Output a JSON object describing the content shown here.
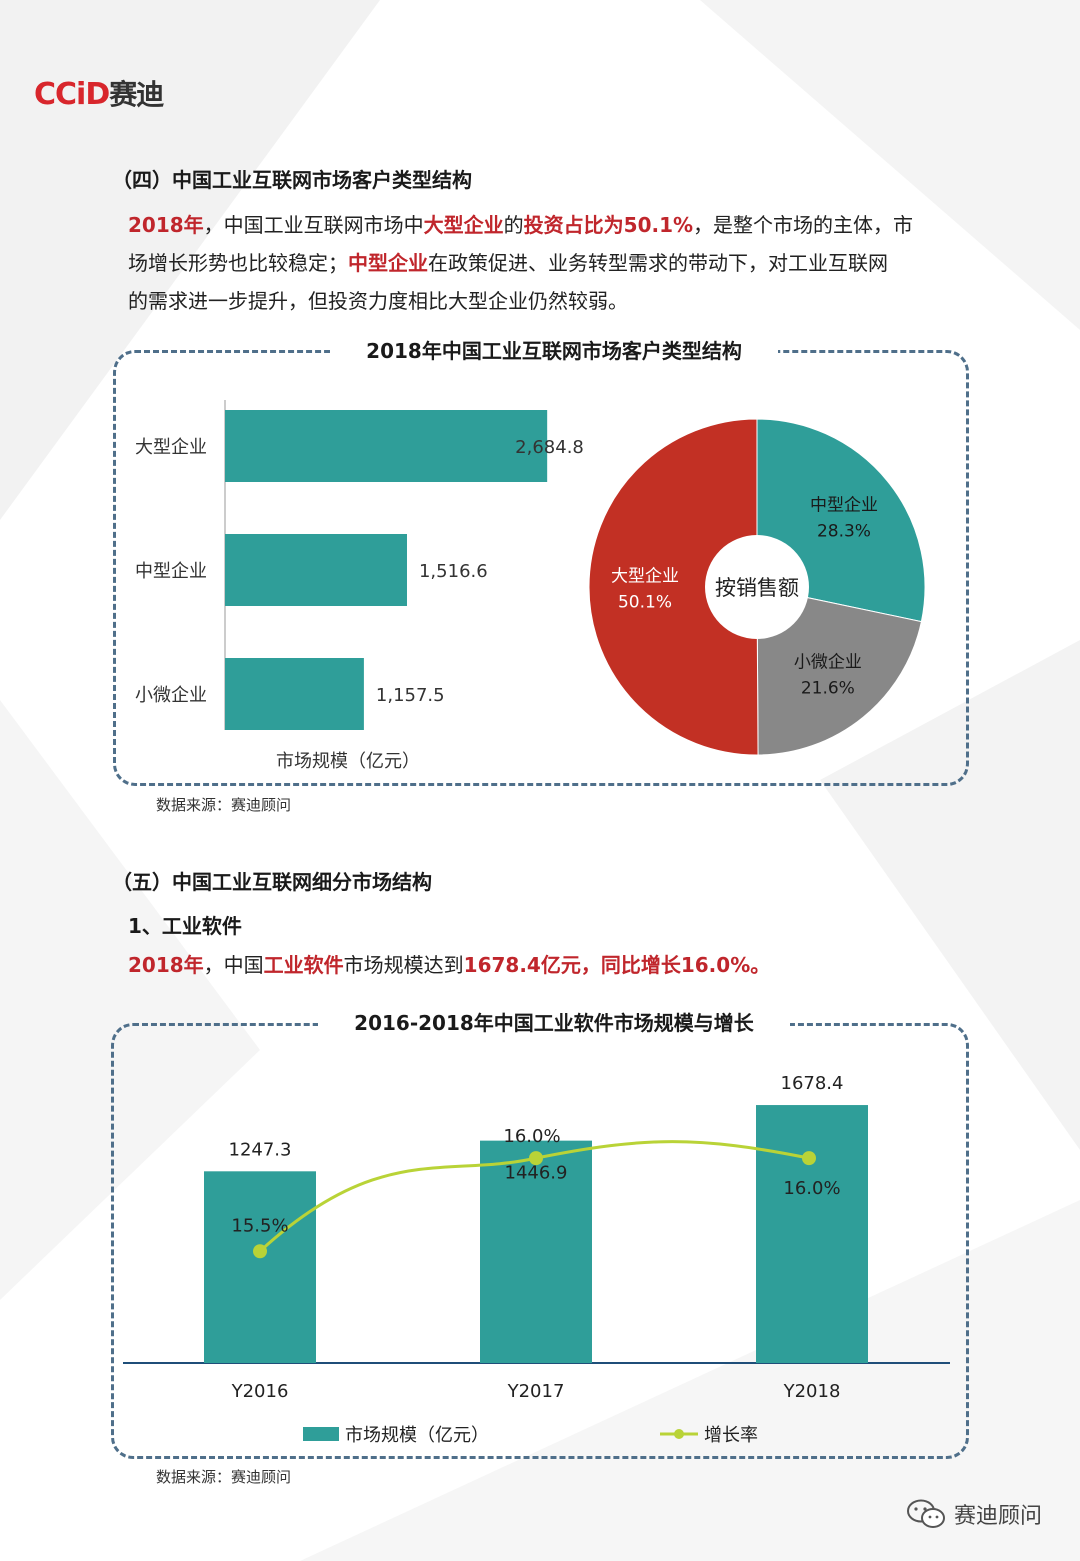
{
  "logo": {
    "latin": "CCiD",
    "chinese": "赛迪"
  },
  "section4": {
    "heading": "（四）中国工业互联网市场客户类型结构",
    "para": {
      "l1_year": "2018年",
      "l1_a": "，中国工业互联网市场中",
      "l1_b": "大型企业",
      "l1_c": "的",
      "l1_d": "投资占比为50.1%",
      "l1_e": "，是整个市场的主体，市",
      "l2_a": "场增长形势也比较稳定；",
      "l2_b": "中型企业",
      "l2_c": "在政策促进、业务转型需求的带动下，对工业互联网",
      "l3": "的需求进一步提升，但投资力度相比大型企业仍然较弱。"
    }
  },
  "chart1_title": "2018年中国工业互联网市场客户类型结构",
  "source1": "数据来源：赛迪顾问",
  "section5": {
    "heading": "（五）中国工业互联网细分市场结构",
    "sub": "1、工业软件",
    "line_year": "2018年",
    "line_a": "，中国",
    "line_b": "工业软件",
    "line_c": "市场规模达到",
    "line_d": "1678.4亿元，同比增长16.0%。"
  },
  "chart2_title": "2016-2018年中国工业软件市场规模与增长",
  "source2": "数据来源：赛迪顾问",
  "wechat": "赛迪顾问",
  "colors": {
    "teal": "#2f9e99",
    "red": "#c23024",
    "gray": "#888888",
    "lime": "#b9d337",
    "navy": "#1f4e79",
    "frame": "#4f6f8a"
  },
  "chart_data": [
    {
      "type": "bar",
      "orientation": "horizontal",
      "categories": [
        "大型企业",
        "中型企业",
        "小微企业"
      ],
      "values": [
        2684.8,
        1516.6,
        1157.5
      ],
      "value_labels": [
        "2,684.8",
        "1,516.6",
        "1,157.5"
      ],
      "xlabel": "市场规模（亿元）",
      "xlim": [
        0,
        2700
      ]
    },
    {
      "type": "pie",
      "donut": true,
      "center_label": "按销售额",
      "slices": [
        {
          "name": "中型企业",
          "value": 28.3,
          "label": "28.3%",
          "color": "#2f9e99"
        },
        {
          "name": "小微企业",
          "value": 21.6,
          "label": "21.6%",
          "color": "#888888"
        },
        {
          "name": "大型企业",
          "value": 50.1,
          "label": "50.1%",
          "color": "#c23024"
        }
      ]
    },
    {
      "type": "bar",
      "categories": [
        "Y2016",
        "Y2017",
        "Y2018"
      ],
      "series": [
        {
          "name": "市场规模（亿元）",
          "kind": "bar",
          "values": [
            1247.3,
            1446.9,
            1678.4
          ],
          "labels": [
            "1247.3",
            "1446.9",
            "1678.4"
          ]
        },
        {
          "name": "增长率",
          "kind": "line",
          "values": [
            15.5,
            16.0,
            16.0
          ],
          "labels": [
            "15.5%",
            "16.0%",
            "16.0%"
          ]
        }
      ],
      "ylim": [
        0,
        1900
      ],
      "y2lim": [
        14.9,
        16.5
      ],
      "legend": "bottom"
    }
  ]
}
